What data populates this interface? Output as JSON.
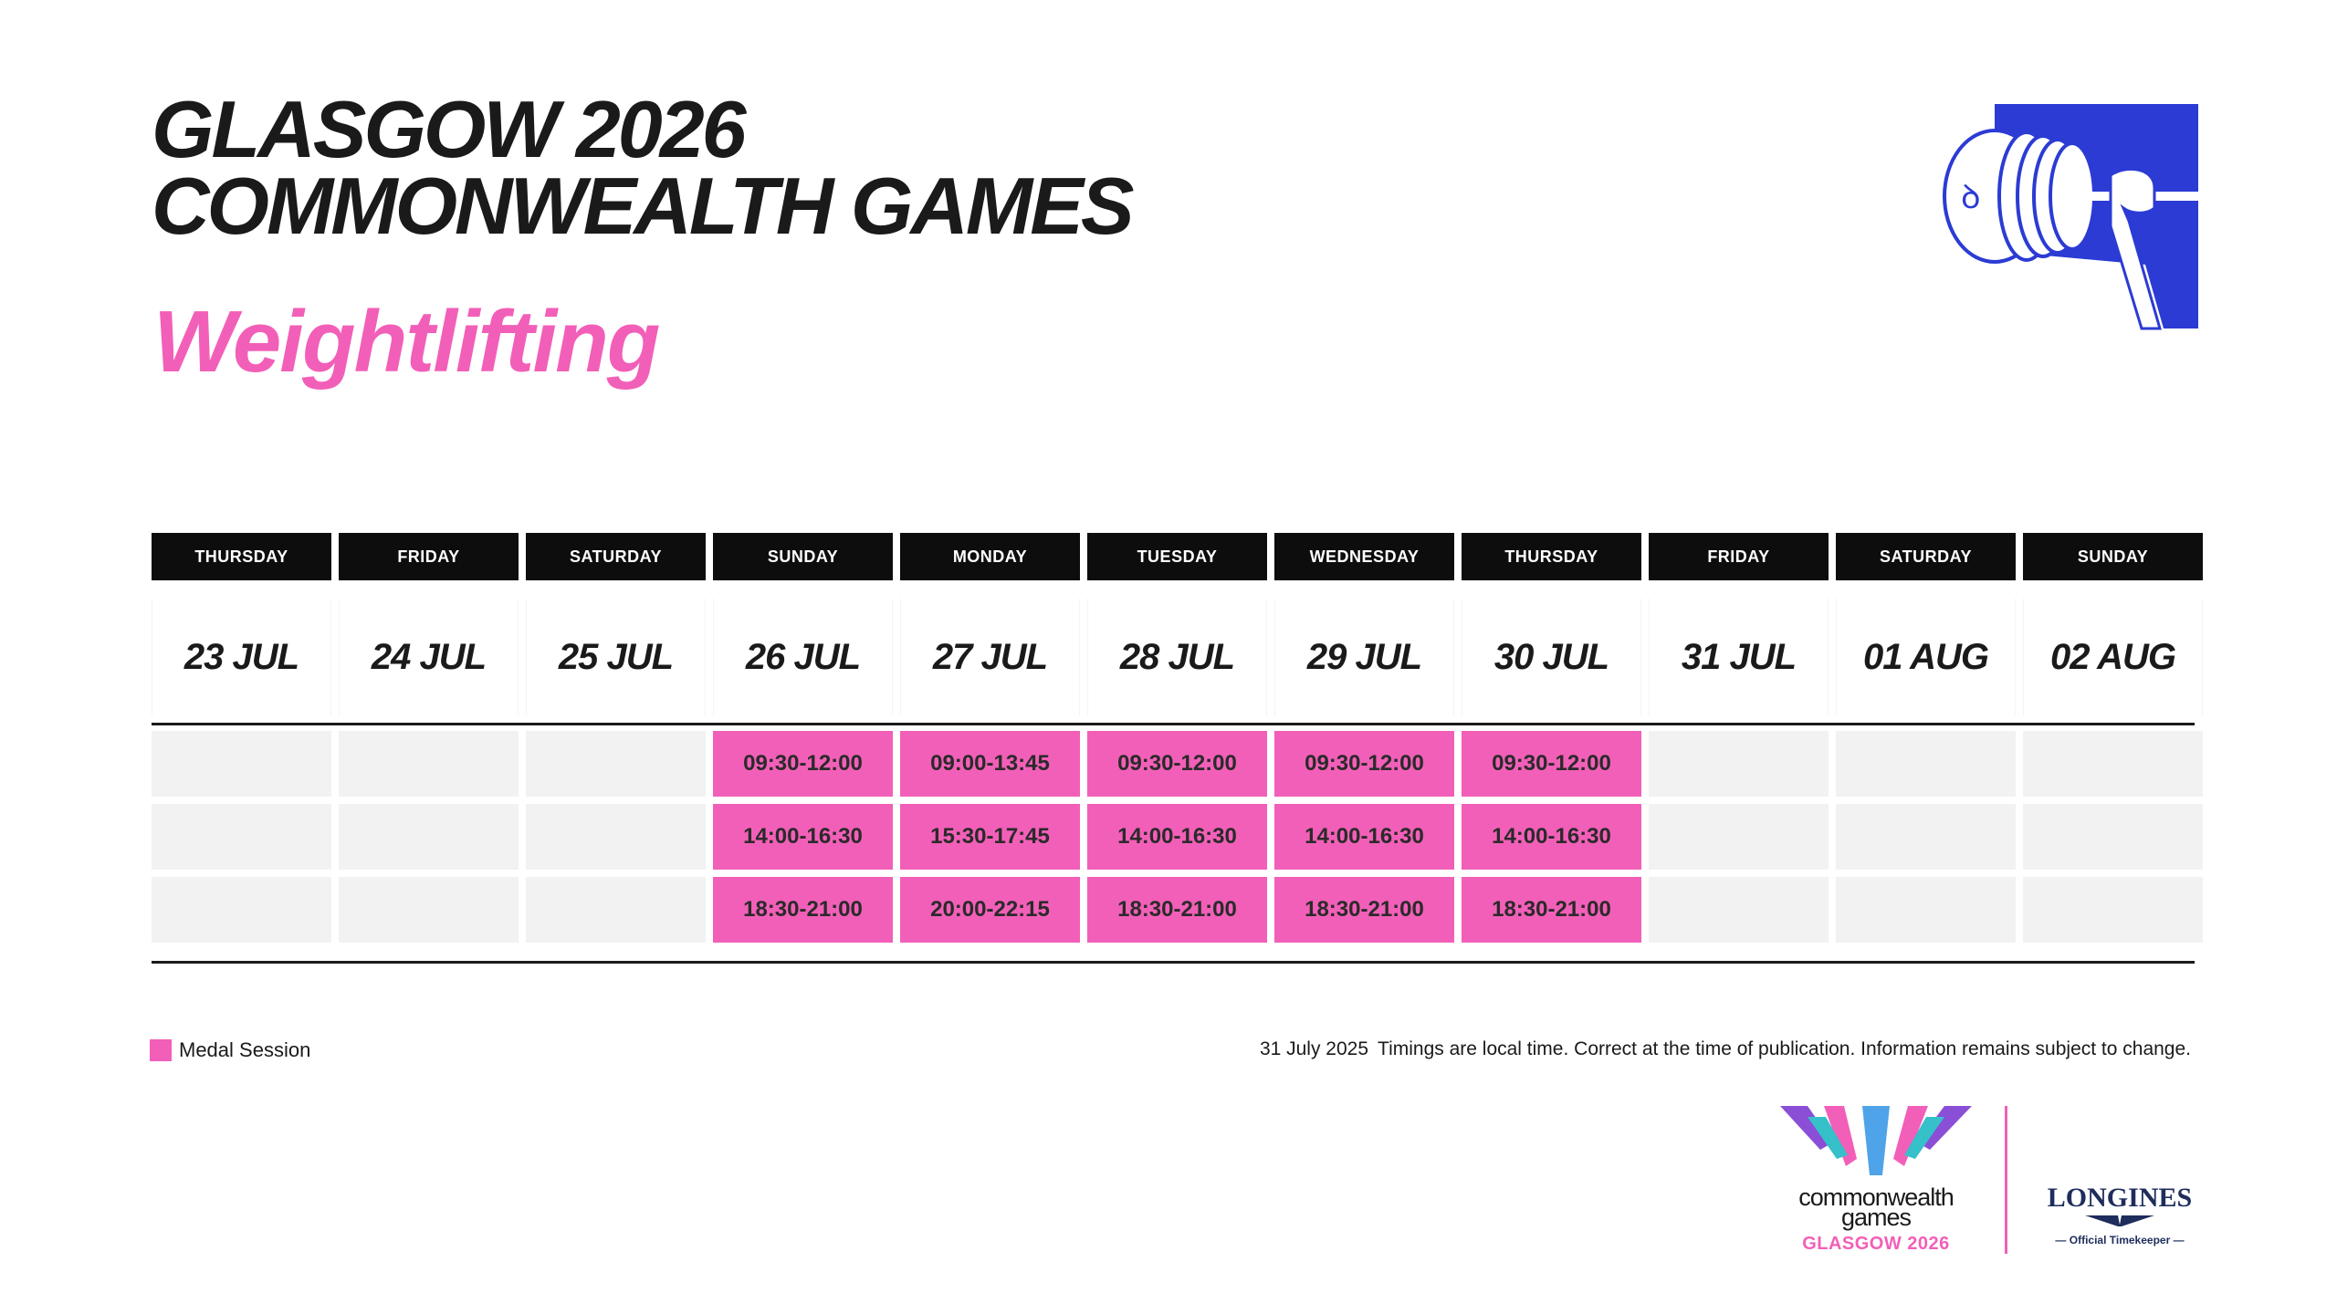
{
  "header": {
    "title_line1": "GLASGOW 2026",
    "title_line2": "COMMONWEALTH GAMES",
    "sport": "Weightlifting"
  },
  "pictogram": {
    "icon": "weightlifting-pictogram-icon",
    "color": "#2b3bd4"
  },
  "schedule": {
    "days": [
      {
        "weekday": "THURSDAY",
        "date": "23 JUL",
        "sessions": [
          "",
          "",
          ""
        ],
        "medal": [
          false,
          false,
          false
        ]
      },
      {
        "weekday": "FRIDAY",
        "date": "24 JUL",
        "sessions": [
          "",
          "",
          ""
        ],
        "medal": [
          false,
          false,
          false
        ]
      },
      {
        "weekday": "SATURDAY",
        "date": "25 JUL",
        "sessions": [
          "",
          "",
          ""
        ],
        "medal": [
          false,
          false,
          false
        ]
      },
      {
        "weekday": "SUNDAY",
        "date": "26 JUL",
        "sessions": [
          "09:30-12:00",
          "14:00-16:30",
          "18:30-21:00"
        ],
        "medal": [
          true,
          true,
          true
        ]
      },
      {
        "weekday": "MONDAY",
        "date": "27 JUL",
        "sessions": [
          "09:00-13:45",
          "15:30-17:45",
          "20:00-22:15"
        ],
        "medal": [
          true,
          true,
          true
        ]
      },
      {
        "weekday": "TUESDAY",
        "date": "28 JUL",
        "sessions": [
          "09:30-12:00",
          "14:00-16:30",
          "18:30-21:00"
        ],
        "medal": [
          true,
          true,
          true
        ]
      },
      {
        "weekday": "WEDNESDAY",
        "date": "29 JUL",
        "sessions": [
          "09:30-12:00",
          "14:00-16:30",
          "18:30-21:00"
        ],
        "medal": [
          true,
          true,
          true
        ]
      },
      {
        "weekday": "THURSDAY",
        "date": "30 JUL",
        "sessions": [
          "09:30-12:00",
          "14:00-16:30",
          "18:30-21:00"
        ],
        "medal": [
          true,
          true,
          true
        ]
      },
      {
        "weekday": "FRIDAY",
        "date": "31 JUL",
        "sessions": [
          "",
          "",
          ""
        ],
        "medal": [
          false,
          false,
          false
        ]
      },
      {
        "weekday": "SATURDAY",
        "date": "01 AUG",
        "sessions": [
          "",
          "",
          ""
        ],
        "medal": [
          false,
          false,
          false
        ]
      },
      {
        "weekday": "SUNDAY",
        "date": "02 AUG",
        "sessions": [
          "",
          "",
          ""
        ],
        "medal": [
          false,
          false,
          false
        ]
      }
    ]
  },
  "legend": {
    "label": "Medal Session",
    "color": "#f25fb8"
  },
  "footnote": {
    "date": "31 July 2025",
    "text": "Timings are local time. Correct at the time of publication. Information remains subject to change."
  },
  "logos": {
    "cg_line1": "commonwealth",
    "cg_line2": "games",
    "cg_line3": "GLASGOW 2026",
    "longines_name": "LONGINES",
    "longines_sub": "— Official Timekeeper —"
  }
}
